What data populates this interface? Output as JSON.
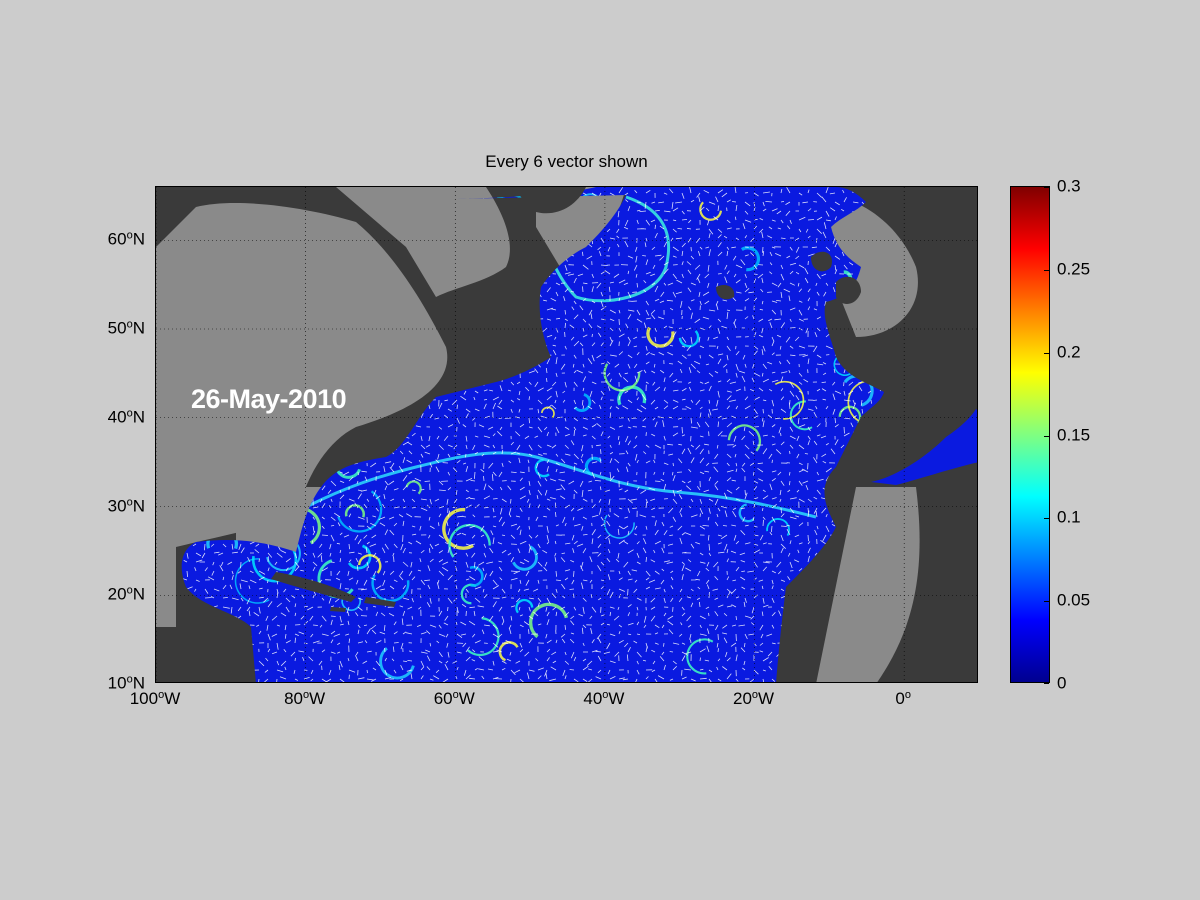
{
  "title": "Every 6 vector shown",
  "date": "26-May-2010",
  "axes": {
    "lat_ticks": [
      {
        "value": 10,
        "text": "10",
        "suffix": "N"
      },
      {
        "value": 20,
        "text": "20",
        "suffix": "N"
      },
      {
        "value": 30,
        "text": "30",
        "suffix": "N"
      },
      {
        "value": 40,
        "text": "40",
        "suffix": "N"
      },
      {
        "value": 50,
        "text": "50",
        "suffix": "N"
      },
      {
        "value": 60,
        "text": "60",
        "suffix": "N"
      }
    ],
    "lon_ticks": [
      {
        "value": -100,
        "text": "100",
        "suffix": "W"
      },
      {
        "value": -80,
        "text": "80",
        "suffix": "W"
      },
      {
        "value": -60,
        "text": "60",
        "suffix": "W"
      },
      {
        "value": -40,
        "text": "40",
        "suffix": "W"
      },
      {
        "value": -20,
        "text": "20",
        "suffix": "W"
      },
      {
        "value": 0,
        "text": "0",
        "suffix": ""
      }
    ],
    "lon_range": [
      -100,
      10
    ],
    "lat_range": [
      10,
      66
    ]
  },
  "colorbar": {
    "ticks": [
      "0",
      "0.05",
      "0.1",
      "0.15",
      "0.2",
      "0.25",
      "0.3"
    ],
    "range": [
      0,
      0.3
    ],
    "colormap": "jet"
  },
  "colors": {
    "figure_bg": "#cccccc",
    "land": "#3a3a3a",
    "shelf": "#888888",
    "ocean": "#0a1ae0",
    "vectors": "#ffffff"
  }
}
